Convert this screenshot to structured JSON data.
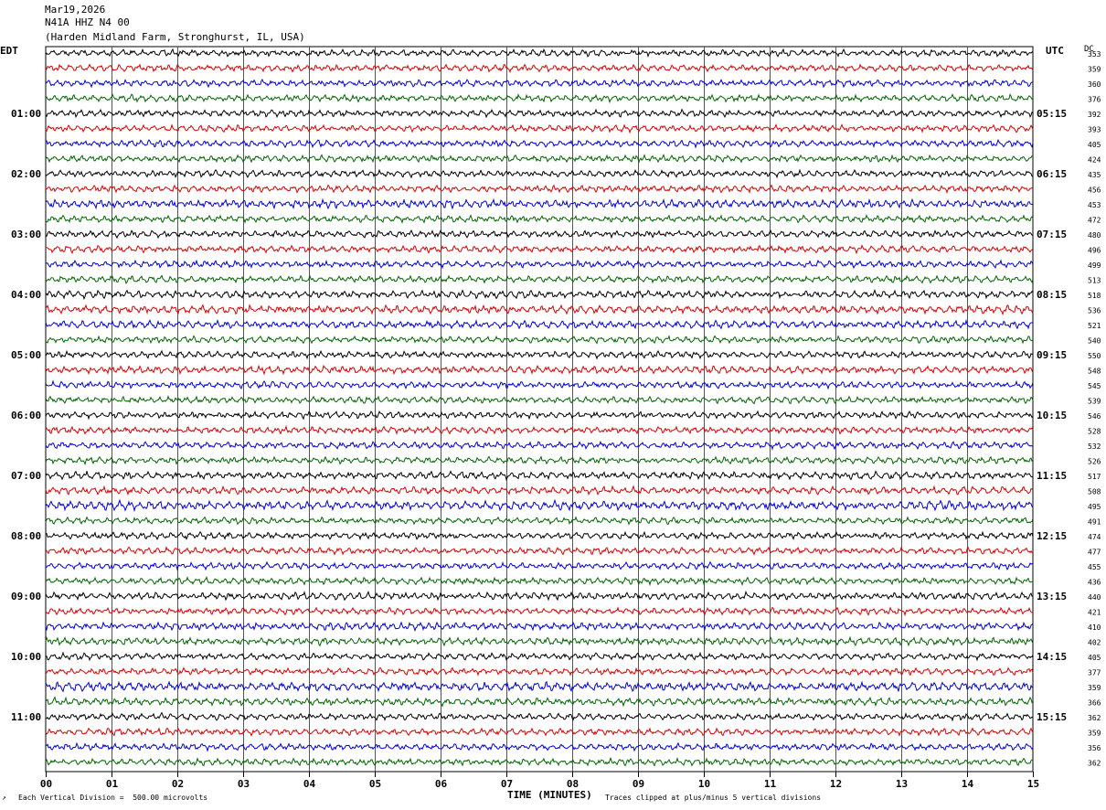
{
  "header": {
    "date": "Mar19,2026",
    "station": "N41A HHZ N4 00",
    "location": "(Harden Midland Farm, Stronghurst, IL, USA)"
  },
  "labels": {
    "left_tz": "EDT",
    "right_tz": "UTC",
    "dc": "DC"
  },
  "footer": {
    "scale": "Each Vertical Division =  500.00 microvolts",
    "xlabel": "TIME (MINUTES)",
    "clip_note": "Traces clipped at plus/minus 5 vertical divisions",
    "corner_mark": "↗"
  },
  "colors": {
    "trace_cycle": [
      "#000000",
      "#dd0000",
      "#0000dd",
      "#006600"
    ],
    "grid": "#000000"
  },
  "chart_data": {
    "type": "line",
    "title": "",
    "xlabel": "TIME (MINUTES)",
    "xlim": [
      0,
      15
    ],
    "x_ticks": [
      "00",
      "01",
      "02",
      "03",
      "04",
      "05",
      "06",
      "07",
      "08",
      "09",
      "10",
      "11",
      "12",
      "13",
      "14",
      "15"
    ],
    "rows_per_hour": 4,
    "row_count": 48,
    "left_hour_labels": [
      "01:00",
      "02:00",
      "03:00",
      "04:00",
      "05:00",
      "06:00",
      "07:00",
      "08:00",
      "09:00",
      "10:00",
      "11:00"
    ],
    "left_label_rows": [
      4,
      8,
      12,
      16,
      20,
      24,
      28,
      32,
      36,
      40,
      44
    ],
    "right_hour_labels": [
      "05:15",
      "06:15",
      "07:15",
      "08:15",
      "09:15",
      "10:15",
      "11:15",
      "12:15",
      "13:15",
      "14:15",
      "15:15"
    ],
    "right_label_rows": [
      4,
      8,
      12,
      16,
      20,
      24,
      28,
      32,
      36,
      40,
      44
    ],
    "dc_offsets": [
      353,
      359,
      360,
      376,
      392,
      393,
      405,
      424,
      435,
      456,
      453,
      472,
      480,
      496,
      499,
      513,
      518,
      536,
      521,
      540,
      550,
      548,
      545,
      539,
      546,
      528,
      532,
      526,
      517,
      508,
      495,
      491,
      474,
      477,
      455,
      436,
      440,
      421,
      410,
      402,
      405,
      377,
      359,
      366,
      362,
      359,
      356,
      362
    ],
    "relative_amplitude": [
      0.9,
      0.9,
      0.9,
      0.9,
      0.9,
      0.9,
      0.9,
      0.9,
      0.9,
      0.9,
      1.1,
      0.9,
      0.9,
      0.9,
      0.9,
      0.9,
      1.0,
      1.1,
      1.0,
      0.9,
      0.9,
      1.0,
      0.9,
      0.9,
      0.9,
      0.9,
      0.9,
      0.9,
      1.0,
      1.0,
      1.2,
      0.9,
      0.9,
      0.9,
      0.9,
      0.9,
      1.0,
      0.9,
      1.0,
      1.0,
      0.9,
      0.9,
      1.2,
      1.0,
      0.9,
      0.9,
      0.9,
      0.9
    ]
  }
}
